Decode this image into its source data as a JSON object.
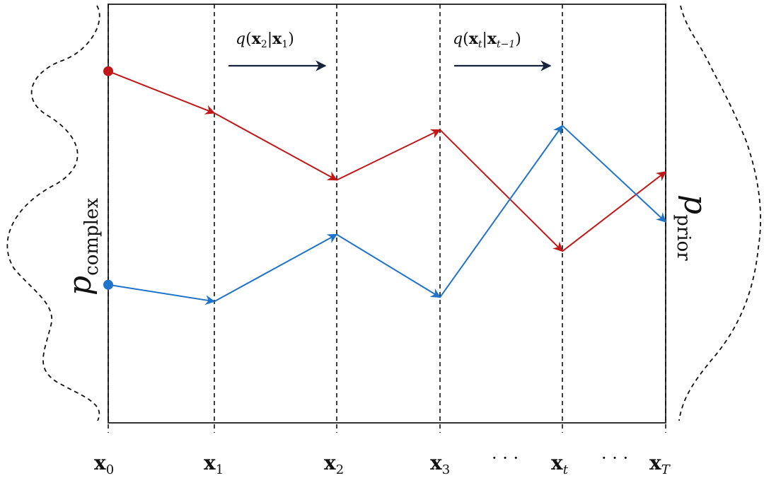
{
  "title": "",
  "colors": {
    "frame": "#333333",
    "red_path": "#c01818",
    "blue_path": "#1f73c9",
    "transition_arrow": "#16233a",
    "dashed": "#111111"
  },
  "labels": {
    "left_dist_sym": "p",
    "left_dist_sub": "complex",
    "right_dist_sym": "p",
    "right_dist_sub": "prior",
    "ellipsis": "· · ·",
    "transitions": [
      {
        "q": "q",
        "open": "(",
        "a": "x",
        "a_sub": "2",
        "bar": "|",
        "b": "x",
        "b_sub": "1",
        "close": ")"
      },
      {
        "q": "q",
        "open": "(",
        "a": "x",
        "a_sub": "t",
        "bar": "|",
        "b": "x",
        "b_sub": "t−1",
        "close": ")"
      }
    ],
    "steps": [
      {
        "sym": "x",
        "sub": "0"
      },
      {
        "sym": "x",
        "sub": "1"
      },
      {
        "sym": "x",
        "sub": "2"
      },
      {
        "sym": "x",
        "sub": "3"
      },
      {
        "sym": "x",
        "sub": "t"
      },
      {
        "sym": "x",
        "sub": "T"
      }
    ]
  },
  "trajectories": [
    {
      "name": "",
      "color_key": "red_path",
      "values": [
        0.84,
        0.74,
        0.58,
        0.7,
        0.41,
        0.6
      ]
    },
    {
      "name": "",
      "color_key": "blue_path",
      "values": [
        0.33,
        0.29,
        0.45,
        0.3,
        0.71,
        0.48
      ]
    }
  ]
}
